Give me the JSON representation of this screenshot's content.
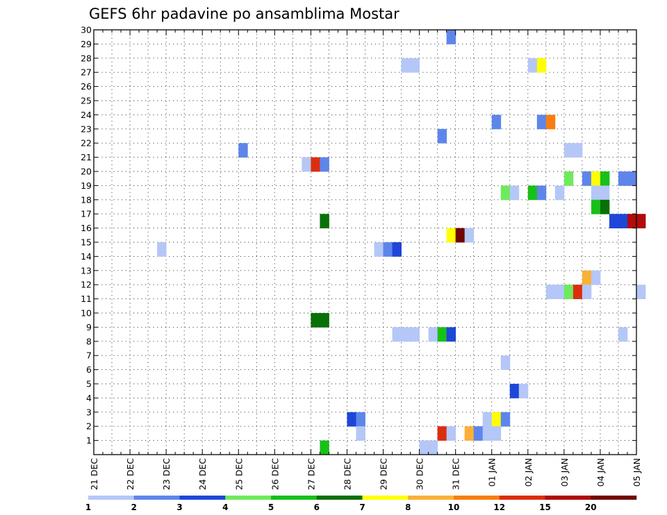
{
  "chart_data": {
    "type": "heatmap",
    "title": "GEFS 6hr padavine po ansamblima Mostar",
    "y_min": 0,
    "y_max": 30,
    "y_tick_labels": [
      "1",
      "2",
      "3",
      "4",
      "5",
      "6",
      "7",
      "8",
      "9",
      "10",
      "11",
      "12",
      "13",
      "14",
      "15",
      "16",
      "17",
      "18",
      "19",
      "20",
      "21",
      "22",
      "23",
      "24",
      "25",
      "26",
      "27",
      "28",
      "29",
      "30"
    ],
    "x_tick_labels": [
      "21 DEC",
      "22 DEC",
      "23 DEC",
      "24 DEC",
      "25 DEC",
      "26 DEC",
      "27 DEC",
      "28 DEC",
      "29 DEC",
      "30 DEC",
      "31 DEC",
      "01 JAN",
      "02 JAN",
      "03 JAN",
      "04 JAN",
      "05 JAN"
    ],
    "grid": true,
    "colorbar": {
      "colors": [
        "#b4c7f7",
        "#5e86ea",
        "#1e46d9",
        "#6fea5c",
        "#18c018",
        "#087008",
        "#ffff00",
        "#fbb036",
        "#f77e10",
        "#db2e0e",
        "#b00c0c",
        "#700404"
      ],
      "labels": [
        {
          "text": "1",
          "index": 0
        },
        {
          "text": "2",
          "index": 1
        },
        {
          "text": "3",
          "index": 2
        },
        {
          "text": "4",
          "index": 3
        },
        {
          "text": "5",
          "index": 4
        },
        {
          "text": "6",
          "index": 5
        },
        {
          "text": "7",
          "index": 6
        },
        {
          "text": "8",
          "index": 7
        },
        {
          "text": "10",
          "index": 8
        },
        {
          "text": "12",
          "index": 9
        },
        {
          "text": "15",
          "index": 10
        },
        {
          "text": "20",
          "index": 11
        }
      ]
    },
    "cells": [
      {
        "row": 30,
        "t": 39,
        "c": 1
      },
      {
        "row": 28,
        "t": 34,
        "c": 0
      },
      {
        "row": 28,
        "t": 35,
        "c": 0
      },
      {
        "row": 28,
        "t": 48,
        "c": 0
      },
      {
        "row": 28,
        "t": 49,
        "c": 6
      },
      {
        "row": 24,
        "t": 44,
        "c": 1
      },
      {
        "row": 24,
        "t": 49,
        "c": 1
      },
      {
        "row": 24,
        "t": 50,
        "c": 8
      },
      {
        "row": 23,
        "t": 38,
        "c": 1
      },
      {
        "row": 22,
        "t": 16,
        "c": 1
      },
      {
        "row": 22,
        "t": 52,
        "c": 0
      },
      {
        "row": 22,
        "t": 53,
        "c": 0
      },
      {
        "row": 21,
        "t": 23,
        "c": 0
      },
      {
        "row": 21,
        "t": 24,
        "c": 9
      },
      {
        "row": 21,
        "t": 25,
        "c": 1
      },
      {
        "row": 20,
        "t": 52,
        "c": 3
      },
      {
        "row": 20,
        "t": 54,
        "c": 1
      },
      {
        "row": 20,
        "t": 55,
        "c": 6
      },
      {
        "row": 20,
        "t": 56,
        "c": 4
      },
      {
        "row": 20,
        "t": 58,
        "c": 1
      },
      {
        "row": 20,
        "t": 59,
        "c": 1
      },
      {
        "row": 19,
        "t": 45,
        "c": 3
      },
      {
        "row": 19,
        "t": 46,
        "c": 0
      },
      {
        "row": 19,
        "t": 48,
        "c": 4
      },
      {
        "row": 19,
        "t": 49,
        "c": 1
      },
      {
        "row": 19,
        "t": 51,
        "c": 0
      },
      {
        "row": 19,
        "t": 55,
        "c": 0
      },
      {
        "row": 19,
        "t": 56,
        "c": 0
      },
      {
        "row": 18,
        "t": 55,
        "c": 4
      },
      {
        "row": 18,
        "t": 56,
        "c": 5
      },
      {
        "row": 17,
        "t": 25,
        "c": 5
      },
      {
        "row": 17,
        "t": 57,
        "c": 2
      },
      {
        "row": 17,
        "t": 58,
        "c": 2
      },
      {
        "row": 17,
        "t": 59,
        "c": 10
      },
      {
        "row": 17,
        "t": 60,
        "c": 10
      },
      {
        "row": 16,
        "t": 39,
        "c": 6
      },
      {
        "row": 16,
        "t": 40,
        "c": 11
      },
      {
        "row": 16,
        "t": 41,
        "c": 0
      },
      {
        "row": 15,
        "t": 7,
        "c": 0
      },
      {
        "row": 15,
        "t": 31,
        "c": 0
      },
      {
        "row": 15,
        "t": 32,
        "c": 1
      },
      {
        "row": 15,
        "t": 33,
        "c": 2
      },
      {
        "row": 13,
        "t": 54,
        "c": 7
      },
      {
        "row": 13,
        "t": 55,
        "c": 0
      },
      {
        "row": 12,
        "t": 50,
        "c": 0
      },
      {
        "row": 12,
        "t": 51,
        "c": 0
      },
      {
        "row": 12,
        "t": 52,
        "c": 3
      },
      {
        "row": 12,
        "t": 53,
        "c": 9
      },
      {
        "row": 12,
        "t": 54,
        "c": 0
      },
      {
        "row": 12,
        "t": 60,
        "c": 0
      },
      {
        "row": 10,
        "t": 24,
        "c": 5
      },
      {
        "row": 10,
        "t": 25,
        "c": 5
      },
      {
        "row": 9,
        "t": 33,
        "c": 0
      },
      {
        "row": 9,
        "t": 34,
        "c": 0
      },
      {
        "row": 9,
        "t": 35,
        "c": 0
      },
      {
        "row": 9,
        "t": 37,
        "c": 0
      },
      {
        "row": 9,
        "t": 38,
        "c": 4
      },
      {
        "row": 9,
        "t": 39,
        "c": 2
      },
      {
        "row": 9,
        "t": 58,
        "c": 0
      },
      {
        "row": 7,
        "t": 45,
        "c": 0
      },
      {
        "row": 5,
        "t": 46,
        "c": 2
      },
      {
        "row": 5,
        "t": 47,
        "c": 0
      },
      {
        "row": 3,
        "t": 28,
        "c": 2
      },
      {
        "row": 3,
        "t": 29,
        "c": 1
      },
      {
        "row": 3,
        "t": 43,
        "c": 0
      },
      {
        "row": 3,
        "t": 44,
        "c": 6
      },
      {
        "row": 3,
        "t": 45,
        "c": 1
      },
      {
        "row": 2,
        "t": 29,
        "c": 0
      },
      {
        "row": 2,
        "t": 38,
        "c": 9
      },
      {
        "row": 2,
        "t": 39,
        "c": 0
      },
      {
        "row": 2,
        "t": 41,
        "c": 7
      },
      {
        "row": 2,
        "t": 42,
        "c": 1
      },
      {
        "row": 2,
        "t": 43,
        "c": 0
      },
      {
        "row": 2,
        "t": 44,
        "c": 0
      },
      {
        "row": 1,
        "t": 25,
        "c": 4
      },
      {
        "row": 1,
        "t": 36,
        "c": 0
      },
      {
        "row": 1,
        "t": 37,
        "c": 0
      }
    ]
  }
}
